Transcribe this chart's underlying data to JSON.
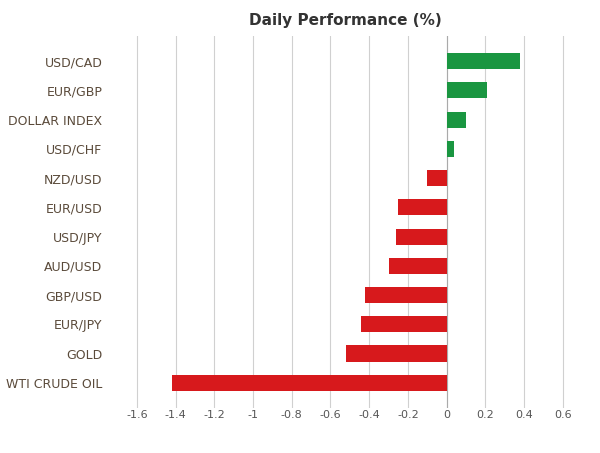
{
  "categories": [
    "USD/CAD",
    "EUR/GBP",
    "DOLLAR INDEX",
    "USD/CHF",
    "NZD/USD",
    "EUR/USD",
    "USD/JPY",
    "AUD/USD",
    "GBP/USD",
    "EUR/JPY",
    "GOLD",
    "WTI CRUDE OIL"
  ],
  "values": [
    0.38,
    0.21,
    0.1,
    0.04,
    -0.1,
    -0.25,
    -0.26,
    -0.3,
    -0.42,
    -0.44,
    -0.52,
    -1.42
  ],
  "positive_color": "#1a9641",
  "negative_color": "#d7191c",
  "title": "Daily Performance (%)",
  "title_fontsize": 11,
  "xlim": [
    -1.75,
    0.7
  ],
  "xticks": [
    -1.6,
    -1.4,
    -1.2,
    -1.0,
    -0.8,
    -0.6,
    -0.4,
    -0.2,
    0.0,
    0.2,
    0.4,
    0.6
  ],
  "xtick_labels": [
    "-1.6",
    "-1.4",
    "-1.2",
    "-1",
    "-0.8",
    "-0.6",
    "-0.4",
    "-0.2",
    "0",
    "0.2",
    "0.4",
    "0.6"
  ],
  "background_color": "#ffffff",
  "grid_color": "#d0d0d0",
  "label_fontsize": 9,
  "tick_fontsize": 8,
  "label_color": "#5a4a3a",
  "bar_height": 0.55
}
